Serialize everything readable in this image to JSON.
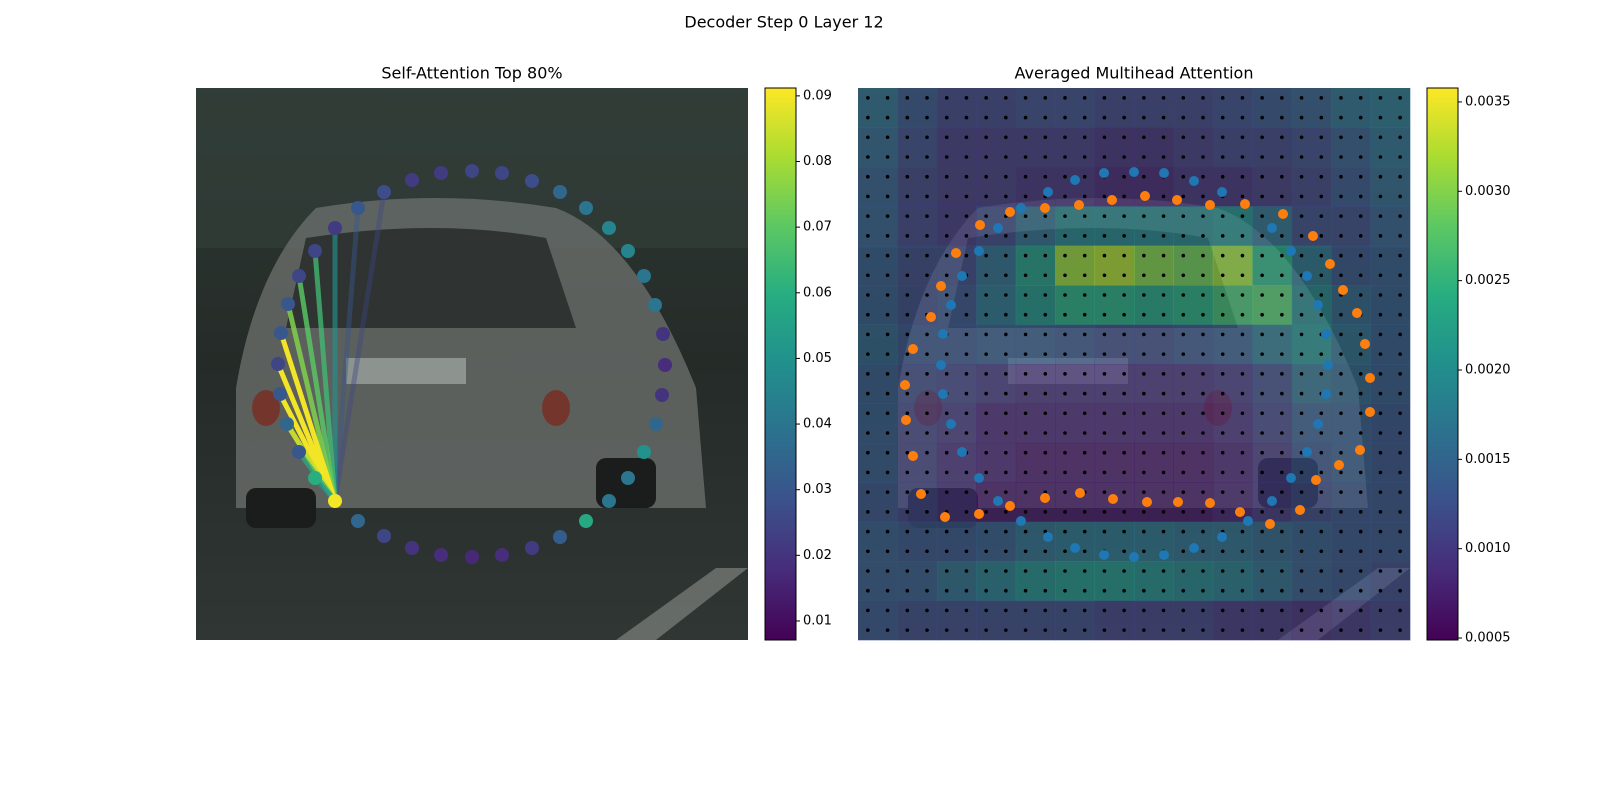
{
  "title": "Decoder Step 0 Layer 12",
  "chart_data": [
    {
      "type": "scatter",
      "title": "Self-Attention Top 80%",
      "colormap": "viridis",
      "xlim": [
        0,
        552
      ],
      "ylim": [
        552,
        0
      ],
      "x": [
        139,
        162,
        188,
        216,
        245,
        276,
        306,
        336,
        364,
        390,
        413,
        432,
        448,
        460,
        466,
        469,
        467,
        459,
        448,
        432,
        413,
        390,
        364,
        336,
        306,
        276,
        245,
        216,
        188,
        162,
        139,
        119,
        103,
        92,
        85,
        82,
        84,
        91,
        103,
        119
      ],
      "y": [
        413,
        433,
        448,
        460,
        467,
        469,
        467,
        460,
        449,
        433,
        413,
        390,
        364,
        336,
        307,
        277,
        246,
        217,
        188,
        163,
        140,
        120,
        104,
        93,
        85,
        83,
        85,
        92,
        104,
        120,
        140,
        163,
        188,
        216,
        245,
        276,
        306,
        336,
        364,
        390
      ],
      "values": [
        0.09,
        0.035,
        0.025,
        0.02,
        0.018,
        0.017,
        0.018,
        0.022,
        0.032,
        0.058,
        0.04,
        0.04,
        0.05,
        0.035,
        0.02,
        0.018,
        0.02,
        0.04,
        0.04,
        0.045,
        0.045,
        0.04,
        0.035,
        0.027,
        0.025,
        0.025,
        0.022,
        0.022,
        0.027,
        0.03,
        0.022,
        0.025,
        0.025,
        0.03,
        0.03,
        0.025,
        0.03,
        0.035,
        0.03,
        0.06
      ],
      "links": {
        "source": 0,
        "targets": [
          28,
          29,
          30,
          31,
          32,
          33,
          34,
          35,
          36,
          37,
          38,
          39
        ],
        "values": [
          0.025,
          0.03,
          0.05,
          0.065,
          0.07,
          0.075,
          0.09,
          0.09,
          0.09,
          0.085,
          0.06,
          0.05
        ]
      },
      "clim": [
        0.0071,
        0.0912
      ],
      "cticks": [
        0.01,
        0.02,
        0.03,
        0.04,
        0.05,
        0.06,
        0.07,
        0.08,
        0.09
      ]
    },
    {
      "type": "heatmap",
      "title": "Averaged Multihead Attention",
      "colormap": "viridis",
      "xlim": [
        0,
        552
      ],
      "ylim": [
        552,
        0
      ],
      "z": [
        [
          0.0016,
          0.0013,
          0.0011,
          0.0011,
          0.0012,
          0.0012,
          0.0011,
          0.0011,
          0.0011,
          0.0012,
          0.0013,
          0.0014,
          0.0016,
          0.0017
        ],
        [
          0.0015,
          0.0012,
          0.001,
          0.001,
          0.001,
          0.001,
          0.0009,
          0.0009,
          0.001,
          0.0011,
          0.0011,
          0.0012,
          0.0014,
          0.0016
        ],
        [
          0.0014,
          0.0011,
          0.001,
          0.001,
          0.0009,
          0.0009,
          0.0008,
          0.0008,
          0.0009,
          0.0009,
          0.001,
          0.0011,
          0.0013,
          0.0015
        ],
        [
          0.0014,
          0.0011,
          0.001,
          0.0012,
          0.0016,
          0.0019,
          0.0019,
          0.0019,
          0.0019,
          0.002,
          0.0016,
          0.0012,
          0.0012,
          0.0014
        ],
        [
          0.0014,
          0.0012,
          0.0012,
          0.0016,
          0.0022,
          0.0031,
          0.0032,
          0.003,
          0.0029,
          0.0031,
          0.0024,
          0.0017,
          0.0013,
          0.0014
        ],
        [
          0.0014,
          0.0012,
          0.0013,
          0.0017,
          0.0021,
          0.0024,
          0.0024,
          0.0023,
          0.0024,
          0.0026,
          0.0027,
          0.0019,
          0.0015,
          0.0014
        ],
        [
          0.0015,
          0.0013,
          0.0013,
          0.0014,
          0.0014,
          0.0013,
          0.0012,
          0.0012,
          0.0013,
          0.0014,
          0.0017,
          0.002,
          0.0016,
          0.0014
        ],
        [
          0.0014,
          0.0012,
          0.0011,
          0.001,
          0.0009,
          0.0009,
          0.0009,
          0.0009,
          0.0009,
          0.001,
          0.0012,
          0.0016,
          0.0015,
          0.0014
        ],
        [
          0.0014,
          0.0011,
          0.001,
          0.0008,
          0.0008,
          0.0008,
          0.0008,
          0.0008,
          0.0008,
          0.0009,
          0.0011,
          0.0014,
          0.0014,
          0.0013
        ],
        [
          0.0014,
          0.0011,
          0.0009,
          0.0008,
          0.0007,
          0.0007,
          0.0007,
          0.0007,
          0.0007,
          0.0008,
          0.001,
          0.0013,
          0.0014,
          0.0013
        ],
        [
          0.0013,
          0.0011,
          0.0009,
          0.0007,
          0.0007,
          0.0007,
          0.0007,
          0.0007,
          0.0007,
          0.0008,
          0.001,
          0.0012,
          0.0013,
          0.0013
        ],
        [
          0.0014,
          0.0013,
          0.0013,
          0.0014,
          0.0016,
          0.0017,
          0.0017,
          0.0017,
          0.0016,
          0.0016,
          0.0015,
          0.0014,
          0.0013,
          0.0013
        ],
        [
          0.0014,
          0.0014,
          0.0016,
          0.0018,
          0.002,
          0.0021,
          0.0021,
          0.002,
          0.0019,
          0.0018,
          0.0016,
          0.0014,
          0.0013,
          0.0012
        ],
        [
          0.0013,
          0.0012,
          0.0012,
          0.0012,
          0.0012,
          0.0012,
          0.0011,
          0.0011,
          0.0011,
          0.001,
          0.001,
          0.0009,
          0.001,
          0.0011
        ]
      ],
      "series": [
        {
          "color": "#1f77b4",
          "x": [
            190,
            217,
            246,
            276,
            306,
            336,
            364,
            414,
            433,
            449,
            460,
            468,
            470,
            468,
            460,
            449,
            433,
            414,
            390,
            364,
            336,
            306,
            276,
            246,
            217,
            190,
            163,
            140,
            121,
            104,
            93,
            85,
            83,
            85,
            93,
            104,
            121,
            140,
            163
          ],
          "y": [
            104,
            92,
            85,
            84,
            85,
            93,
            104,
            140,
            163,
            188,
            217,
            246,
            277,
            306,
            336,
            364,
            390,
            413,
            433,
            449,
            460,
            467,
            469,
            467,
            460,
            449,
            433,
            413,
            390,
            364,
            336,
            306,
            277,
            246,
            217,
            188,
            163,
            140,
            120
          ]
        },
        {
          "color": "#ff7f0e",
          "x": [
            152,
            187,
            221,
            254,
            287,
            319,
            352,
            387,
            425,
            455,
            472,
            485,
            499,
            507,
            512,
            512,
            502,
            481,
            458,
            442,
            412,
            382,
            352,
            320,
            289,
            255,
            222,
            187,
            152,
            121,
            87,
            63,
            55,
            48,
            47,
            55,
            73,
            83,
            98,
            122
          ],
          "y": [
            124,
            120,
            117,
            112,
            108,
            112,
            117,
            116,
            126,
            148,
            176,
            202,
            225,
            256,
            290,
            324,
            362,
            377,
            392,
            422,
            436,
            424,
            415,
            414,
            414,
            411,
            405,
            410,
            418,
            426,
            429,
            406,
            368,
            332,
            297,
            261,
            229,
            198,
            165,
            137
          ]
        }
      ],
      "clim": [
        0.000489,
        0.003578
      ],
      "cticks": [
        {
          "value": 0.0005,
          "label": "0.0005"
        },
        {
          "value": 0.001,
          "label": "0.0010"
        },
        0.0015,
        {
          "value": 0.002,
          "label": "0.0020"
        },
        0.0025,
        {
          "value": 0.003,
          "label": "0.0030"
        },
        0.0035
      ]
    }
  ]
}
